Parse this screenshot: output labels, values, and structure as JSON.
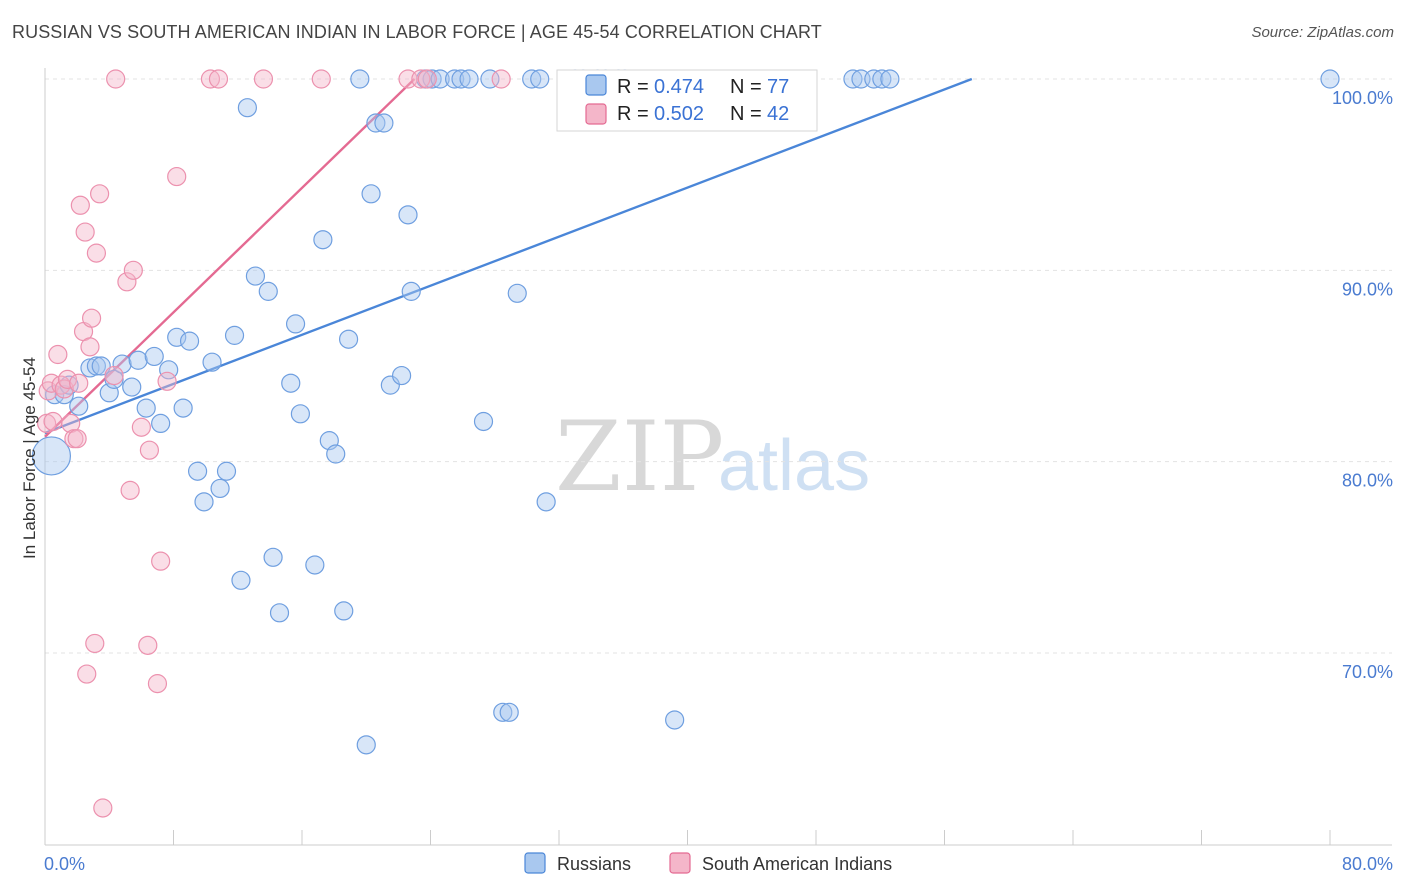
{
  "title": "RUSSIAN VS SOUTH AMERICAN INDIAN IN LABOR FORCE | AGE 45-54 CORRELATION CHART",
  "source": "Source: ZipAtlas.com",
  "watermark": {
    "zip": "ZIP",
    "atlas": "atlas"
  },
  "colors": {
    "blue": "#4a86d8",
    "blue_fill": "#a9c8ef",
    "pink": "#e46a92",
    "pink_fill": "#f4b6c9"
  },
  "chart_data": {
    "type": "scatter",
    "xlabel": "",
    "ylabel": "In Labor Force | Age 45-54",
    "xlim": [
      0,
      80
    ],
    "ylim": [
      60,
      100.5
    ],
    "x_tick_labels": [
      "0.0%",
      "80.0%"
    ],
    "y_ticks": [
      70,
      80,
      90,
      100
    ],
    "y_tick_labels": [
      "70.0%",
      "80.0%",
      "90.0%",
      "100.0%"
    ],
    "legend_top": [
      {
        "r_label": "R = ",
        "r_value": "0.474",
        "n_label": "N = ",
        "n_value": "77"
      },
      {
        "r_label": "R = ",
        "r_value": "0.502",
        "n_label": "N = ",
        "n_value": "42"
      }
    ],
    "series": [
      {
        "name": "Russians",
        "color": "#4a86d8",
        "trendline": [
          [
            0.0,
            81.5
          ],
          [
            57.7,
            100.0
          ]
        ],
        "points": [
          [
            0.4,
            80.3
          ],
          [
            0.6,
            83.5
          ],
          [
            1.2,
            83.5
          ],
          [
            1.5,
            84.0
          ],
          [
            2.1,
            82.9
          ],
          [
            2.8,
            84.9
          ],
          [
            3.2,
            85.0
          ],
          [
            3.5,
            85.0
          ],
          [
            4.0,
            83.6
          ],
          [
            4.3,
            84.3
          ],
          [
            4.8,
            85.1
          ],
          [
            5.4,
            83.9
          ],
          [
            5.8,
            85.3
          ],
          [
            6.3,
            82.8
          ],
          [
            6.8,
            85.5
          ],
          [
            7.2,
            82.0
          ],
          [
            7.7,
            84.8
          ],
          [
            8.2,
            86.5
          ],
          [
            8.6,
            82.8
          ],
          [
            9.0,
            86.3
          ],
          [
            9.5,
            79.5
          ],
          [
            9.9,
            77.9
          ],
          [
            10.4,
            85.2
          ],
          [
            10.9,
            78.6
          ],
          [
            11.3,
            79.5
          ],
          [
            11.8,
            86.6
          ],
          [
            12.2,
            73.8
          ],
          [
            12.6,
            98.5
          ],
          [
            13.1,
            89.7
          ],
          [
            13.9,
            88.9
          ],
          [
            14.2,
            75.0
          ],
          [
            14.6,
            72.1
          ],
          [
            15.3,
            84.1
          ],
          [
            15.6,
            87.2
          ],
          [
            15.9,
            82.5
          ],
          [
            16.8,
            74.6
          ],
          [
            17.3,
            91.6
          ],
          [
            17.7,
            81.1
          ],
          [
            18.1,
            80.4
          ],
          [
            18.6,
            72.2
          ],
          [
            18.9,
            86.4
          ],
          [
            19.6,
            100.0
          ],
          [
            20.0,
            65.2
          ],
          [
            20.3,
            94.0
          ],
          [
            20.6,
            97.7
          ],
          [
            21.1,
            97.7
          ],
          [
            21.5,
            84.0
          ],
          [
            22.2,
            84.5
          ],
          [
            22.6,
            92.9
          ],
          [
            22.8,
            88.9
          ],
          [
            23.7,
            100.0
          ],
          [
            24.1,
            100.0
          ],
          [
            24.6,
            100.0
          ],
          [
            25.5,
            100.0
          ],
          [
            25.9,
            100.0
          ],
          [
            26.4,
            100.0
          ],
          [
            27.3,
            82.1
          ],
          [
            27.7,
            100.0
          ],
          [
            28.5,
            66.9
          ],
          [
            28.9,
            66.9
          ],
          [
            29.4,
            88.8
          ],
          [
            30.3,
            100.0
          ],
          [
            30.8,
            100.0
          ],
          [
            31.2,
            77.9
          ],
          [
            33.0,
            100.0
          ],
          [
            33.5,
            100.0
          ],
          [
            34.4,
            100.0
          ],
          [
            34.9,
            100.0
          ],
          [
            35.7,
            100.0
          ],
          [
            36.1,
            100.0
          ],
          [
            39.2,
            66.5
          ],
          [
            50.3,
            100.0
          ],
          [
            50.8,
            100.0
          ],
          [
            51.6,
            100.0
          ],
          [
            52.1,
            100.0
          ],
          [
            52.6,
            100.0
          ],
          [
            80.0,
            100.0
          ]
        ]
      },
      {
        "name": "South American Indians",
        "color": "#e46a92",
        "trendline": [
          [
            0.0,
            81.3
          ],
          [
            23.0,
            100.0
          ]
        ],
        "points": [
          [
            0.1,
            82.0
          ],
          [
            0.2,
            83.7
          ],
          [
            0.4,
            84.1
          ],
          [
            0.5,
            82.1
          ],
          [
            0.8,
            85.6
          ],
          [
            1.0,
            84.0
          ],
          [
            1.2,
            83.8
          ],
          [
            1.4,
            84.3
          ],
          [
            1.6,
            82.0
          ],
          [
            1.8,
            81.2
          ],
          [
            2.0,
            81.2
          ],
          [
            2.1,
            84.1
          ],
          [
            2.2,
            93.4
          ],
          [
            2.4,
            86.8
          ],
          [
            2.5,
            92.0
          ],
          [
            2.6,
            68.9
          ],
          [
            2.8,
            86.0
          ],
          [
            2.9,
            87.5
          ],
          [
            3.1,
            70.5
          ],
          [
            3.2,
            90.9
          ],
          [
            3.4,
            94.0
          ],
          [
            3.6,
            61.9
          ],
          [
            4.3,
            84.5
          ],
          [
            4.4,
            100.0
          ],
          [
            5.1,
            89.4
          ],
          [
            5.3,
            78.5
          ],
          [
            5.5,
            90.0
          ],
          [
            6.0,
            81.8
          ],
          [
            6.4,
            70.4
          ],
          [
            6.5,
            80.6
          ],
          [
            7.0,
            68.4
          ],
          [
            7.2,
            74.8
          ],
          [
            7.6,
            84.2
          ],
          [
            8.2,
            94.9
          ],
          [
            10.3,
            100.0
          ],
          [
            10.8,
            100.0
          ],
          [
            13.6,
            100.0
          ],
          [
            17.2,
            100.0
          ],
          [
            22.6,
            100.0
          ],
          [
            23.4,
            100.0
          ],
          [
            23.8,
            100.0
          ],
          [
            28.4,
            100.0
          ]
        ]
      }
    ]
  }
}
